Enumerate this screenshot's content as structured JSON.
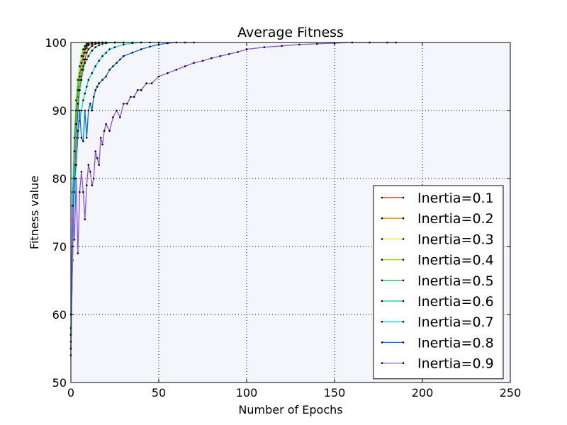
{
  "chart_data": {
    "type": "line",
    "title": "Average Fitness",
    "xlabel": "Number of Epochs",
    "ylabel": "Fitness value",
    "xlim": [
      0,
      250
    ],
    "ylim": [
      50,
      100
    ],
    "xticks": [
      "0",
      "50",
      "100",
      "150",
      "200",
      "250"
    ],
    "yticks": [
      "50",
      "60",
      "70",
      "80",
      "90",
      "100"
    ],
    "grid": true,
    "legend_position": "lower-right",
    "plot_background": "#f5f6fb",
    "series": [
      {
        "name": "Inertia=0.1",
        "color": "#e8140c",
        "x": [
          0,
          1,
          2,
          3,
          4,
          5,
          6,
          7,
          8,
          9,
          10,
          12,
          14,
          16,
          18,
          20,
          25,
          30
        ],
        "y": [
          55,
          68,
          80,
          86,
          90,
          93,
          95,
          96.5,
          97.5,
          98.5,
          99,
          99.5,
          99.8,
          99.9,
          100,
          100,
          100,
          100
        ]
      },
      {
        "name": "Inertia=0.2",
        "color": "#ff8c00",
        "x": [
          0,
          1,
          2,
          3,
          4,
          5,
          6,
          7,
          8,
          9,
          10,
          12,
          14,
          16,
          18,
          20,
          25,
          30
        ],
        "y": [
          54,
          70,
          82,
          88,
          92,
          94.5,
          96,
          97.5,
          98.5,
          99.2,
          99.6,
          99.8,
          99.9,
          100,
          100,
          100,
          100,
          100
        ]
      },
      {
        "name": "Inertia=0.3",
        "color": "#f5e600",
        "x": [
          0,
          1,
          2,
          3,
          4,
          5,
          6,
          7,
          8,
          9,
          10,
          12,
          14,
          16,
          18,
          20
        ],
        "y": [
          55,
          72,
          84,
          90,
          93.5,
          95.5,
          97,
          98.5,
          99.3,
          99.7,
          99.9,
          100,
          100,
          100,
          100,
          100
        ]
      },
      {
        "name": "Inertia=0.4",
        "color": "#7fe000",
        "x": [
          0,
          1,
          2,
          3,
          4,
          5,
          6,
          7,
          8,
          9,
          10,
          12,
          14,
          16,
          18,
          20,
          25,
          30
        ],
        "y": [
          58,
          75,
          86,
          91.5,
          94.5,
          96.5,
          98,
          99,
          99.5,
          99.8,
          99.9,
          100,
          100,
          100,
          100,
          100,
          100,
          100
        ]
      },
      {
        "name": "Inertia=0.5",
        "color": "#00c060",
        "x": [
          0,
          1,
          2,
          3,
          4,
          5,
          6,
          7,
          8,
          9,
          10,
          12,
          14,
          16,
          18,
          20,
          25,
          30
        ],
        "y": [
          57,
          78,
          86,
          90,
          93,
          95,
          97,
          98,
          99,
          99.5,
          99.7,
          99.9,
          100,
          100,
          100,
          100,
          100,
          100
        ]
      },
      {
        "name": "Inertia=0.6",
        "color": "#00c8a0",
        "x": [
          0,
          1,
          2,
          3,
          4,
          5,
          6,
          7,
          8,
          9,
          10,
          12,
          14,
          16,
          18,
          20,
          25,
          30,
          35,
          40
        ],
        "y": [
          57,
          76,
          84,
          88,
          91,
          93,
          94.5,
          96,
          97,
          97.5,
          98,
          98.8,
          99.3,
          99.6,
          99.8,
          99.9,
          100,
          100,
          100,
          100
        ]
      },
      {
        "name": "Inertia=0.7",
        "color": "#00d8e8",
        "x": [
          0,
          1,
          2,
          3,
          4,
          5,
          6,
          7,
          8,
          9,
          10,
          12,
          14,
          16,
          18,
          20,
          22,
          25,
          30,
          35,
          40,
          45,
          50
        ],
        "y": [
          56,
          70,
          78,
          82,
          86,
          88.5,
          90,
          91.5,
          92.5,
          93.5,
          94.5,
          95.5,
          96.5,
          97.3,
          98,
          98.5,
          99,
          99.3,
          99.7,
          99.9,
          100,
          100,
          100
        ]
      },
      {
        "name": "Inertia=0.8",
        "color": "#0070f0",
        "x": [
          0,
          1,
          2,
          3,
          4,
          5,
          6,
          7,
          8,
          9,
          10,
          11,
          12,
          13,
          14,
          15,
          16,
          18,
          20,
          22,
          24,
          26,
          28,
          30,
          35,
          40,
          45,
          50,
          55,
          60,
          65,
          70
        ],
        "y": [
          55,
          74,
          80,
          82,
          87,
          90,
          86,
          85.5,
          90,
          86,
          90,
          91,
          90,
          92,
          93,
          93.5,
          94,
          94.5,
          95,
          96,
          96.5,
          97,
          97.5,
          98,
          98.5,
          99,
          99.4,
          99.7,
          99.9,
          100,
          100,
          100
        ]
      },
      {
        "name": "Inertia=0.9",
        "color": "#8a52e8",
        "x": [
          0,
          1,
          2,
          3,
          4,
          5,
          6,
          7,
          8,
          9,
          10,
          11,
          12,
          13,
          14,
          15,
          16,
          17,
          18,
          19,
          20,
          22,
          24,
          26,
          28,
          30,
          32,
          34,
          36,
          38,
          40,
          43,
          46,
          50,
          55,
          60,
          65,
          70,
          75,
          80,
          85,
          90,
          95,
          100,
          110,
          120,
          130,
          140,
          150,
          160,
          170,
          180,
          185
        ],
        "y": [
          60,
          76,
          71,
          80,
          69,
          78,
          81,
          78,
          74,
          79,
          82,
          81,
          79,
          80,
          84,
          83,
          82,
          86,
          85,
          87,
          88,
          87,
          89,
          90,
          89,
          91,
          91,
          92,
          92,
          93,
          93,
          94,
          94,
          95,
          95.5,
          96,
          96.5,
          97,
          97.3,
          97.7,
          98,
          98.3,
          98.6,
          99,
          99.3,
          99.5,
          99.7,
          99.8,
          99.9,
          100,
          100,
          100,
          100
        ]
      }
    ]
  }
}
